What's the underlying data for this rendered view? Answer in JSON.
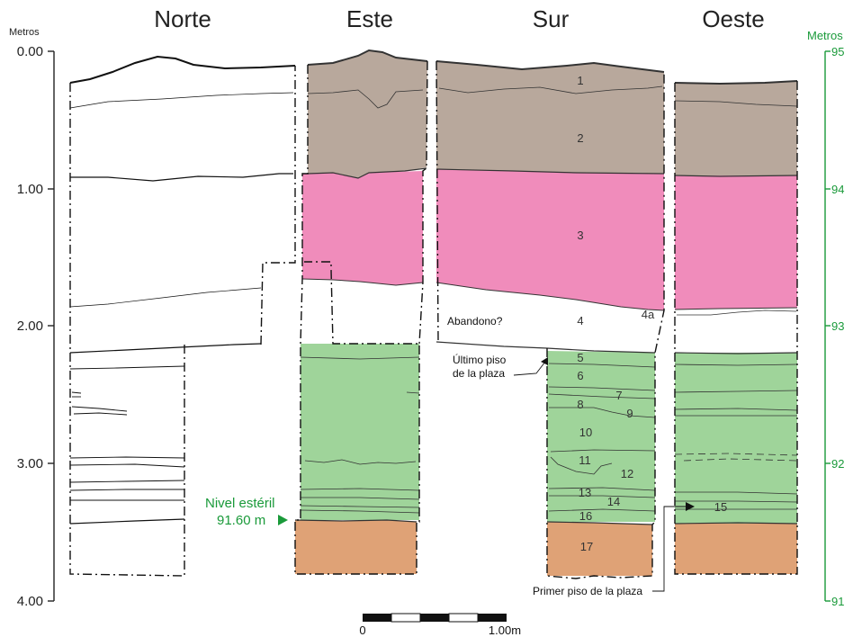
{
  "figure": {
    "column_titles": [
      "Norte",
      "Este",
      "Sur",
      "Oeste"
    ],
    "left_axis": {
      "unit": "Metros",
      "ticks": [
        "0.00",
        "1.00",
        "2.00",
        "3.00",
        "4.00"
      ]
    },
    "right_axis": {
      "unit": "Metros",
      "ticks": [
        "95",
        "94",
        "93",
        "92",
        "91"
      ]
    },
    "layer_labels": [
      "1",
      "2",
      "3",
      "4",
      "4a",
      "5",
      "6",
      "7",
      "8",
      "9",
      "10",
      "11",
      "12",
      "13",
      "14",
      "15",
      "16",
      "17"
    ],
    "annotations": {
      "abandono": "Abandono?",
      "ultimo_piso_line1": "Último piso",
      "ultimo_piso_line2": "de la plaza",
      "primer_piso": "Primer piso de la plaza",
      "nivel_esteril_line1": "Nivel estéril",
      "nivel_esteril_line2": "91.60 m"
    },
    "scale_bar": {
      "start_label": "0",
      "end_label": "1.00m"
    },
    "colors": {
      "layers_1_2": "#b8a89c",
      "layer_3": "#f08cbb",
      "layers_5_16": "#9fd49a",
      "layer_17": "#dfa276",
      "right_axis": "#1a9a3a"
    }
  }
}
